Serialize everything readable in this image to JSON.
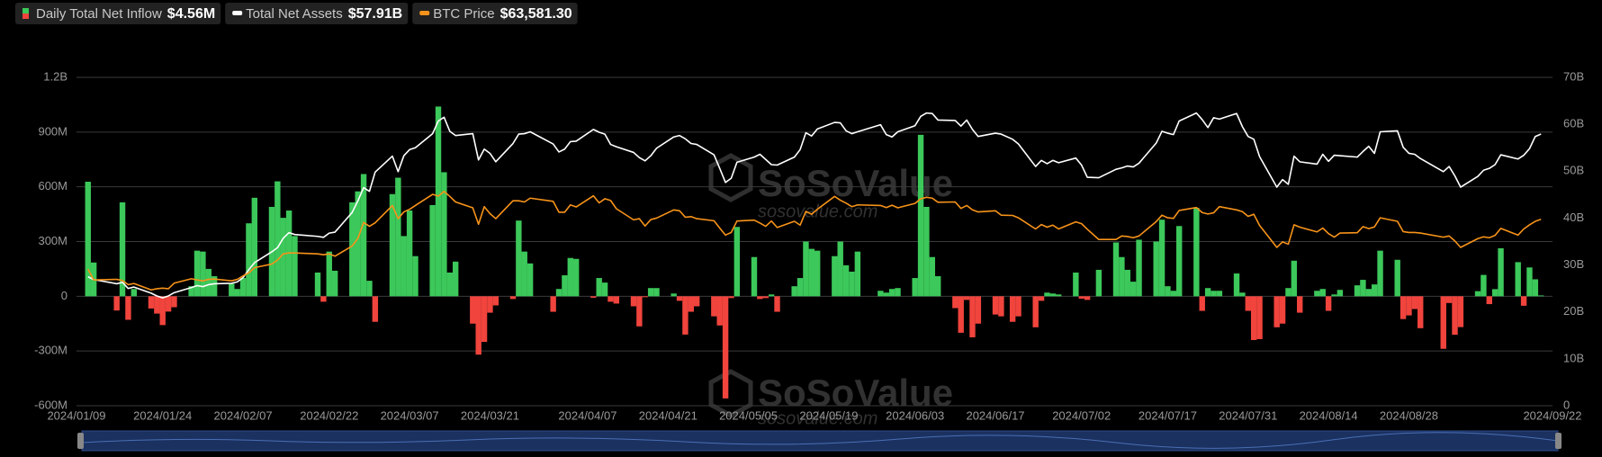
{
  "chart_data": {
    "type": "combo",
    "watermark": {
      "brand": "SoSoValue",
      "site": "sosovalue.com"
    },
    "x": [
      "2024/01/11",
      "2024/01/12",
      "2024/01/16",
      "2024/01/17",
      "2024/01/18",
      "2024/01/19",
      "2024/01/22",
      "2024/01/23",
      "2024/01/24",
      "2024/01/25",
      "2024/01/26",
      "2024/01/29",
      "2024/01/30",
      "2024/01/31",
      "2024/02/01",
      "2024/02/02",
      "2024/02/05",
      "2024/02/06",
      "2024/02/07",
      "2024/02/08",
      "2024/02/09",
      "2024/02/12",
      "2024/02/13",
      "2024/02/14",
      "2024/02/15",
      "2024/02/16",
      "2024/02/20",
      "2024/02/21",
      "2024/02/22",
      "2024/02/23",
      "2024/02/26",
      "2024/02/27",
      "2024/02/28",
      "2024/02/29",
      "2024/03/01",
      "2024/03/04",
      "2024/03/05",
      "2024/03/06",
      "2024/03/07",
      "2024/03/08",
      "2024/03/11",
      "2024/03/12",
      "2024/03/13",
      "2024/03/14",
      "2024/03/15",
      "2024/03/18",
      "2024/03/19",
      "2024/03/20",
      "2024/03/21",
      "2024/03/22",
      "2024/03/25",
      "2024/03/26",
      "2024/03/27",
      "2024/03/28",
      "2024/04/01",
      "2024/04/02",
      "2024/04/03",
      "2024/04/04",
      "2024/04/05",
      "2024/04/08",
      "2024/04/09",
      "2024/04/10",
      "2024/04/11",
      "2024/04/12",
      "2024/04/15",
      "2024/04/16",
      "2024/04/17",
      "2024/04/18",
      "2024/04/19",
      "2024/04/22",
      "2024/04/23",
      "2024/04/24",
      "2024/04/25",
      "2024/04/26",
      "2024/04/29",
      "2024/04/30",
      "2024/05/01",
      "2024/05/02",
      "2024/05/03",
      "2024/05/06",
      "2024/05/07",
      "2024/05/08",
      "2024/05/09",
      "2024/05/10",
      "2024/05/13",
      "2024/05/14",
      "2024/05/15",
      "2024/05/16",
      "2024/05/17",
      "2024/05/20",
      "2024/05/21",
      "2024/05/22",
      "2024/05/23",
      "2024/05/24",
      "2024/05/28",
      "2024/05/29",
      "2024/05/30",
      "2024/05/31",
      "2024/06/03",
      "2024/06/04",
      "2024/06/05",
      "2024/06/06",
      "2024/06/07",
      "2024/06/10",
      "2024/06/11",
      "2024/06/12",
      "2024/06/13",
      "2024/06/14",
      "2024/06/17",
      "2024/06/18",
      "2024/06/20",
      "2024/06/21",
      "2024/06/24",
      "2024/06/25",
      "2024/06/26",
      "2024/06/27",
      "2024/06/28",
      "2024/07/01",
      "2024/07/02",
      "2024/07/03",
      "2024/07/05",
      "2024/07/08",
      "2024/07/09",
      "2024/07/10",
      "2024/07/11",
      "2024/07/12",
      "2024/07/15",
      "2024/07/16",
      "2024/07/17",
      "2024/07/18",
      "2024/07/19",
      "2024/07/22",
      "2024/07/23",
      "2024/07/24",
      "2024/07/25",
      "2024/07/26",
      "2024/07/29",
      "2024/07/30",
      "2024/07/31",
      "2024/08/01",
      "2024/08/02",
      "2024/08/05",
      "2024/08/06",
      "2024/08/07",
      "2024/08/08",
      "2024/08/09",
      "2024/08/12",
      "2024/08/13",
      "2024/08/14",
      "2024/08/15",
      "2024/08/16",
      "2024/08/19",
      "2024/08/20",
      "2024/08/21",
      "2024/08/22",
      "2024/08/23",
      "2024/08/26",
      "2024/08/27",
      "2024/08/28",
      "2024/08/29",
      "2024/08/30",
      "2024/09/03",
      "2024/09/04",
      "2024/09/05",
      "2024/09/06",
      "2024/09/09",
      "2024/09/10",
      "2024/09/11",
      "2024/09/12",
      "2024/09/13",
      "2024/09/16",
      "2024/09/17",
      "2024/09/18",
      "2024/09/19",
      "2024/09/20"
    ],
    "xlim": [
      "2024/01/09",
      "2024/09/22"
    ],
    "xticks": [
      "2024/01/09",
      "2024/01/24",
      "2024/02/07",
      "2024/02/22",
      "2024/03/07",
      "2024/03/21",
      "2024/04/07",
      "2024/04/21",
      "2024/05/05",
      "2024/05/19",
      "2024/06/03",
      "2024/06/17",
      "2024/07/02",
      "2024/07/17",
      "2024/07/31",
      "2024/08/14",
      "2024/08/28",
      "2024/09/22"
    ],
    "ylim": [
      -600,
      1200
    ],
    "yticks": [
      {
        "value": 1200,
        "label": "1.2B"
      },
      {
        "value": 900,
        "label": "900M"
      },
      {
        "value": 600,
        "label": "600M"
      },
      {
        "value": 300,
        "label": "300M"
      },
      0,
      {
        "value": -300,
        "label": "-300M"
      },
      {
        "value": -600,
        "label": "-600M"
      }
    ],
    "y2lim": [
      0,
      70
    ],
    "y2ticks": [
      {
        "value": 70,
        "label": "70B"
      },
      {
        "value": 60,
        "label": "60B"
      },
      {
        "value": 50,
        "label": "50B"
      },
      {
        "value": 40,
        "label": "40B"
      },
      {
        "value": 30,
        "label": "30B"
      },
      {
        "value": 20,
        "label": "20B"
      },
      {
        "value": 10,
        "label": "10B"
      },
      0
    ],
    "y3lim": [
      0,
      112000
    ],
    "grid": true,
    "series": [
      {
        "name": "Daily Total Net Inflow",
        "type": "bar",
        "color": "#3cc85a",
        "negative_color": "#f0443d",
        "current_label": "$4.56M",
        "values": [
          628,
          185,
          -78,
          515,
          -129,
          40,
          -67,
          -95,
          -158,
          -84,
          -60,
          55,
          250,
          245,
          150,
          110,
          70,
          40,
          100,
          400,
          540,
          490,
          630,
          430,
          470,
          330,
          130,
          -30,
          245,
          140,
          515,
          575,
          670,
          85,
          -140,
          560,
          650,
          330,
          470,
          220,
          500,
          1040,
          680,
          130,
          190,
          -150,
          -320,
          -250,
          -90,
          -50,
          -15,
          415,
          245,
          180,
          -85,
          40,
          115,
          210,
          205,
          -8,
          100,
          75,
          -30,
          -40,
          -55,
          -165,
          -5,
          45,
          45,
          15,
          -25,
          -210,
          -85,
          -55,
          -110,
          -160,
          -560,
          -10,
          380,
          215,
          -15,
          -10,
          10,
          -85,
          55,
          100,
          300,
          260,
          250,
          220,
          300,
          170,
          135,
          245,
          30,
          20,
          40,
          45,
          100,
          885,
          490,
          215,
          110,
          -65,
          -200,
          -20,
          -225,
          -150,
          -100,
          -110,
          -140,
          -110,
          -170,
          -25,
          20,
          15,
          10,
          130,
          -13,
          -20,
          145,
          295,
          215,
          145,
          80,
          310,
          300,
          420,
          55,
          30,
          385,
          485,
          -80,
          45,
          30,
          30,
          125,
          20,
          -80,
          -240,
          -235,
          -170,
          -150,
          45,
          195,
          -90,
          30,
          40,
          -80,
          10,
          35,
          60,
          90,
          40,
          65,
          250,
          200,
          -125,
          -105,
          -70,
          -175,
          -288,
          -37,
          -211,
          -169,
          28,
          117,
          -43,
          39,
          263,
          187,
          -52,
          158,
          93,
          4.56
        ]
      },
      {
        "name": "Total Net Assets",
        "type": "line",
        "axis": "y2",
        "color": "#ffffff",
        "current_label": "$57.91B",
        "values": [
          27.5,
          26.9,
          26.0,
          26.3,
          25.0,
          25.3,
          24.0,
          23.4,
          23.0,
          23.4,
          24.1,
          25.2,
          25.6,
          25.4,
          25.8,
          26.0,
          26.1,
          26.4,
          27.3,
          29.0,
          30.5,
          32.8,
          33.7,
          35.7,
          36.9,
          36.5,
          36.1,
          35.9,
          36.8,
          37.0,
          41.2,
          43.7,
          46.5,
          45.7,
          49.8,
          53.2,
          49.9,
          53.3,
          54.6,
          55.0,
          58.0,
          60.7,
          61.5,
          58.5,
          57.6,
          58.0,
          52.4,
          54.7,
          53.8,
          52.0,
          55.9,
          57.9,
          58.0,
          58.4,
          55.8,
          54.1,
          54.7,
          56.3,
          56.4,
          58.9,
          58.3,
          57.9,
          55.7,
          55.2,
          54.0,
          52.9,
          52.2,
          53.3,
          54.9,
          57.3,
          57.6,
          56.9,
          55.9,
          55.7,
          53.5,
          50.6,
          47.6,
          48.5,
          51.9,
          53.0,
          53.6,
          52.5,
          51.4,
          51.3,
          53.0,
          54.6,
          58.2,
          57.5,
          59.0,
          60.4,
          60.3,
          58.6,
          58.0,
          58.4,
          59.9,
          57.8,
          57.3,
          58.4,
          59.7,
          61.7,
          62.4,
          62.3,
          60.9,
          60.8,
          59.6,
          60.9,
          58.9,
          57.4,
          58.1,
          57.9,
          56.8,
          55.8,
          51.0,
          52.3,
          51.6,
          52.3,
          51.8,
          52.8,
          51.3,
          48.7,
          48.6,
          50.4,
          50.7,
          51.1,
          50.9,
          51.7,
          56.0,
          58.5,
          58.1,
          57.8,
          60.7,
          62.4,
          61.0,
          59.3,
          61.4,
          61.1,
          62.3,
          59.5,
          57.4,
          56.8,
          53.1,
          46.6,
          48.2,
          47.2,
          53.2,
          52.0,
          51.5,
          53.6,
          52.1,
          53.4,
          53.3,
          53.0,
          54.2,
          55.3,
          53.8,
          58.4,
          58.6,
          55.1,
          53.8,
          53.6,
          52.7,
          49.9,
          51.0,
          49.0,
          46.6,
          48.9,
          50.2,
          50.6,
          51.4,
          53.5,
          52.6,
          53.4,
          54.8,
          57.4,
          57.91
        ]
      },
      {
        "name": "BTC Price",
        "type": "line",
        "axis": "y3",
        "color": "#f7931a",
        "current_label": "$63,581.30",
        "values": [
          46600,
          42900,
          43100,
          42700,
          41300,
          41700,
          39500,
          39900,
          40100,
          39900,
          41800,
          43300,
          42900,
          42600,
          43100,
          43200,
          42600,
          43100,
          44300,
          45300,
          47100,
          48300,
          49700,
          51800,
          52100,
          52100,
          51800,
          51500,
          51800,
          51000,
          54500,
          57100,
          62500,
          61200,
          62400,
          68300,
          63800,
          66100,
          67000,
          68300,
          72100,
          71500,
          73100,
          71400,
          69500,
          67500,
          61900,
          67900,
          65500,
          63800,
          69900,
          69900,
          69500,
          70800,
          69700,
          66000,
          66000,
          68500,
          67800,
          71600,
          69200,
          70600,
          70000,
          67200,
          63400,
          63800,
          61300,
          63500,
          64000,
          66800,
          66500,
          64300,
          64500,
          63800,
          63100,
          60600,
          58200,
          59100,
          63000,
          63300,
          62300,
          61200,
          63000,
          60800,
          62900,
          61600,
          66300,
          65300,
          67000,
          71400,
          70100,
          69100,
          67900,
          68500,
          68300,
          67600,
          68400,
          67500,
          69000,
          70600,
          71100,
          70800,
          69400,
          69500,
          67300,
          68300,
          66800,
          66100,
          66500,
          65000,
          64900,
          64100,
          60300,
          61800,
          60900,
          61600,
          60300,
          62700,
          62100,
          60200,
          56700,
          56700,
          57900,
          57700,
          57300,
          57900,
          62800,
          65000,
          64100,
          63900,
          66600,
          67600,
          65900,
          65400,
          65800,
          67900,
          66800,
          66200,
          64600,
          65300,
          61500,
          54000,
          55900,
          55100,
          61700,
          60900,
          59300,
          60600,
          58700,
          57500,
          58900,
          59000,
          61100,
          60400,
          61000,
          64100,
          62900,
          59400,
          59100,
          59100,
          58900,
          57500,
          57900,
          56200,
          54000,
          57000,
          57600,
          57300,
          58100,
          60500,
          58200,
          60300,
          61700,
          62900,
          63581.3
        ]
      }
    ]
  }
}
